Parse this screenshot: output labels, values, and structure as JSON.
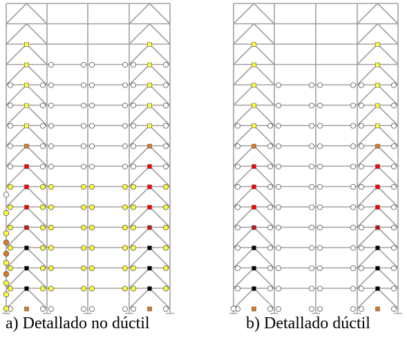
{
  "colors": {
    "frame": "#a0a0a0",
    "hinge_open": "#ffffff",
    "hinge_yellow": "#ffff33",
    "hinge_orange": "#e07820",
    "hinge_red": "#ff0000",
    "hinge_darkred": "#c01818",
    "hinge_black": "#000000",
    "outline": "#555555"
  },
  "frames": [
    {
      "id": "a",
      "caption": "a) Detallado no dúctil",
      "brace_marks": [
        "none",
        "yellow",
        "yellow",
        "yellow",
        "yellow",
        "yellow",
        "orange",
        "red",
        "red",
        "red",
        "darkred",
        "black",
        "black",
        "black",
        "orange"
      ],
      "beam_left_hinges": [
        "none",
        "none",
        "none",
        "open",
        "open",
        "open",
        "open",
        "open",
        "yellow",
        "yellow",
        "yellow",
        "yellow",
        "yellow",
        "yellow",
        "open"
      ],
      "beam_mid_hinges": [
        "none",
        "none",
        "open",
        "open",
        "open",
        "open",
        "open",
        "open",
        "yellow",
        "yellow",
        "yellow",
        "yellow",
        "yellow",
        "yellow",
        "open"
      ],
      "beam_right_hinges": [
        "none",
        "none",
        "open",
        "open",
        "open",
        "open",
        "open",
        "open",
        "yellow",
        "yellow",
        "yellow",
        "yellow",
        "yellow",
        "yellow",
        "open"
      ],
      "column_hinges": [
        {
          "story": 9.4,
          "fill": "open"
        },
        {
          "story": 10.3,
          "fill": "yellow"
        },
        {
          "story": 11.3,
          "fill": "yellow"
        },
        {
          "story": 11.75,
          "fill": "orange"
        },
        {
          "story": 12.3,
          "fill": "orange"
        },
        {
          "story": 12.75,
          "fill": "yellow"
        },
        {
          "story": 13.3,
          "fill": "orange"
        },
        {
          "story": 13.75,
          "fill": "yellow"
        },
        {
          "story": 14.3,
          "fill": "yellow"
        },
        {
          "story": 15.0,
          "fill": "yellow"
        }
      ]
    },
    {
      "id": "b",
      "caption": "b) Detallado dúctil",
      "brace_marks": [
        "none",
        "yellow",
        "yellow",
        "yellow",
        "yellow",
        "yellow",
        "orange",
        "red",
        "red",
        "red",
        "darkred",
        "black",
        "black",
        "black",
        "orange"
      ],
      "beam_left_hinges": [
        "none",
        "none",
        "none",
        "none",
        "none",
        "open",
        "open",
        "open",
        "open",
        "open",
        "open",
        "open",
        "open",
        "open",
        "open"
      ],
      "beam_mid_hinges": [
        "none",
        "none",
        "none",
        "open",
        "open",
        "open",
        "open",
        "open",
        "open",
        "open",
        "open",
        "open",
        "open",
        "open",
        "open"
      ],
      "beam_right_hinges": [
        "none",
        "none",
        "none",
        "open",
        "open",
        "open",
        "open",
        "open",
        "open",
        "open",
        "open",
        "open",
        "open",
        "open",
        "open"
      ],
      "column_hinges": [
        {
          "story": 15.0,
          "fill": "open"
        }
      ]
    }
  ]
}
